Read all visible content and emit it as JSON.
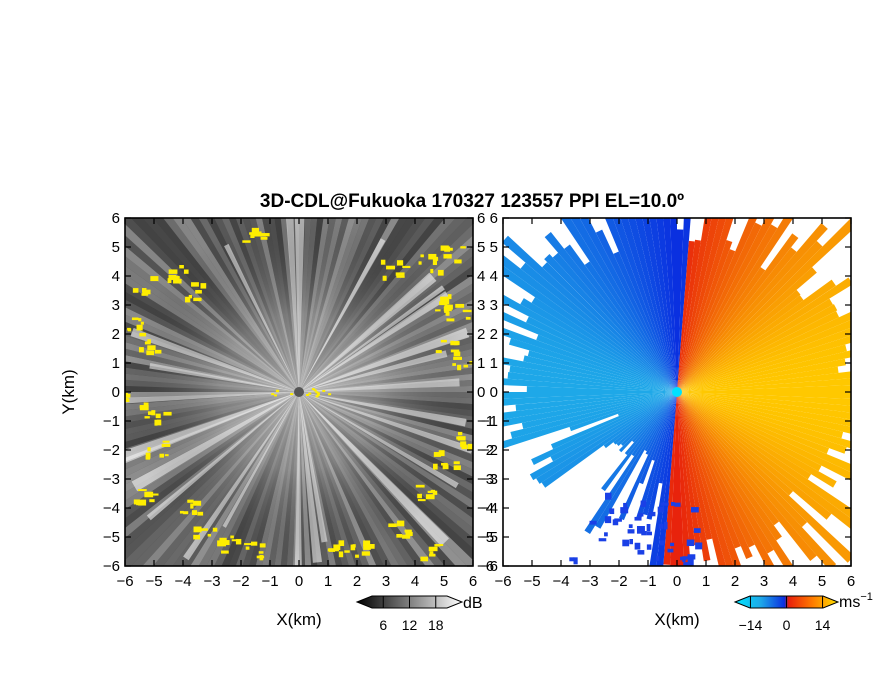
{
  "chart_data": {
    "title": "3D-CDL@Fukuoka 170327 123557 PPI EL=10.0º",
    "panels": [
      {
        "name": "snr-panel",
        "type": "heatmap",
        "field": "signal intensity (radial PPI)",
        "xlabel": "X(km)",
        "ylabel": "Y(km)",
        "xlim": [
          -6,
          6
        ],
        "ylim": [
          -6,
          6
        ],
        "xticks": [
          "−6",
          "−5",
          "−4",
          "−3",
          "−2",
          "−1",
          "0",
          "1",
          "2",
          "3",
          "4",
          "5",
          "6"
        ],
        "yticks": [
          "6",
          "5",
          "4",
          "3",
          "2",
          "1",
          "0",
          "−1",
          "−2",
          "−3",
          "−4",
          "−5",
          "−6"
        ],
        "colorscale": "grayscale (black → white), high values highlighted yellow",
        "highlight_color": "#ffee00",
        "colorbar": {
          "ticks": [
            "6",
            "12",
            "18"
          ],
          "unit": "dB",
          "min": 0,
          "max": 24
        }
      },
      {
        "name": "velocity-panel",
        "type": "heatmap",
        "field": "radial Doppler velocity (PPI)",
        "xlabel": "X(km)",
        "xlim": [
          -6,
          6
        ],
        "ylim": [
          -6,
          6
        ],
        "xticks": [
          "−6",
          "−5",
          "−4",
          "−3",
          "−2",
          "−1",
          "0",
          "1",
          "2",
          "3",
          "4",
          "5",
          "6"
        ],
        "yticks": [
          "6",
          "5",
          "4",
          "3",
          "2",
          "1",
          "0",
          "−1",
          "−2",
          "−3",
          "−4",
          "−5",
          "−6"
        ],
        "colorscale": "cyan → blue (negative) / red → yellow (positive)",
        "colorbar": {
          "ticks": [
            "−14",
            "0",
            "14"
          ],
          "unit": "ms",
          "unit_exp": "−1",
          "min": -20,
          "max": 20
        }
      }
    ]
  },
  "colors": {
    "background": "#ffffff",
    "snr_background": "#3a3a3a",
    "highlight": "#ffee00",
    "vel_neg_far": "#1ea8e8",
    "vel_neg_near": "#0a2ee0",
    "vel_pos_near": "#e8200c",
    "vel_pos_far": "#ffc800"
  }
}
